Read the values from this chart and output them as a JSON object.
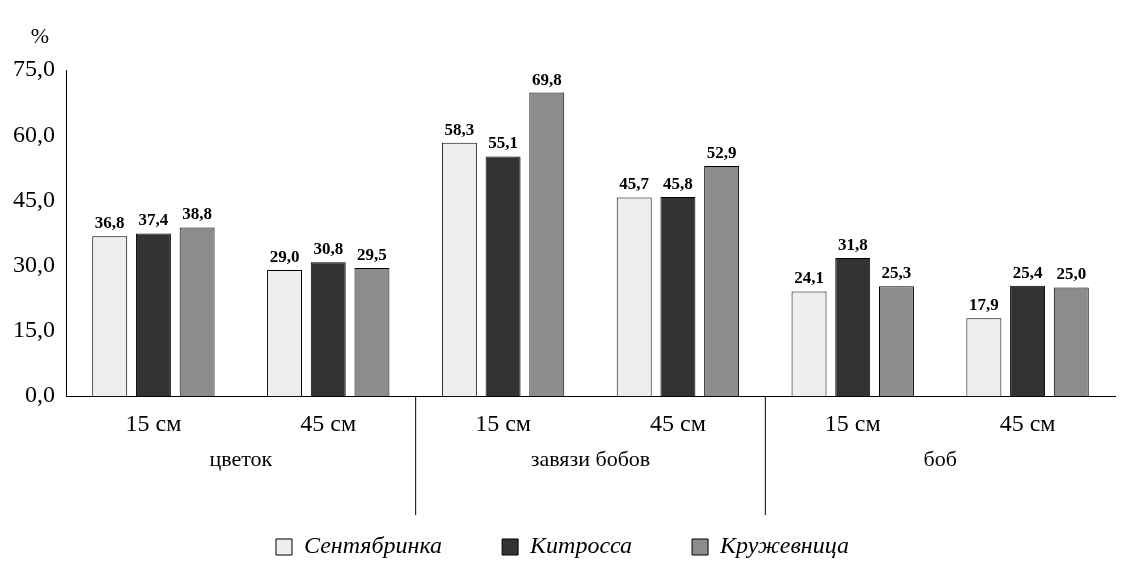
{
  "chart_data": {
    "type": "bar",
    "ylabel": "%",
    "categories": [
      "15 см",
      "45 см",
      "15 см",
      "45 см",
      "15 см",
      "45 см"
    ],
    "annotations": [
      "цветок",
      "завязи бобов",
      "боб"
    ],
    "series": [
      {
        "name": "Сентябринка",
        "color": "#eeeeee",
        "values": [
          36.8,
          29.0,
          58.3,
          45.7,
          24.1,
          17.9
        ],
        "value_labels": [
          "36,8",
          "29,0",
          "58,3",
          "45,7",
          "24,1",
          "17,9"
        ]
      },
      {
        "name": "Китросса",
        "color": "#333333",
        "values": [
          37.4,
          30.8,
          55.1,
          45.8,
          31.8,
          25.4
        ],
        "value_labels": [
          "37,4",
          "30,8",
          "55,1",
          "45,8",
          "31,8",
          "25,4"
        ]
      },
      {
        "name": "Кружевница",
        "color": "#8c8c8c",
        "values": [
          38.8,
          29.5,
          69.8,
          52.9,
          25.3,
          25.0
        ],
        "value_labels": [
          "38,8",
          "29,5",
          "69,8",
          "52,9",
          "25,3",
          "25,0"
        ]
      }
    ],
    "ylim": [
      0,
      75
    ],
    "yticks": [
      {
        "value": 0,
        "label": "0,0"
      },
      {
        "value": 15,
        "label": "15,0"
      },
      {
        "value": 30,
        "label": "30,0"
      },
      {
        "value": 45,
        "label": "45,0"
      },
      {
        "value": 60,
        "label": "60,0"
      },
      {
        "value": 75,
        "label": "75,0"
      }
    ],
    "grid": false,
    "legend": "bottom"
  }
}
